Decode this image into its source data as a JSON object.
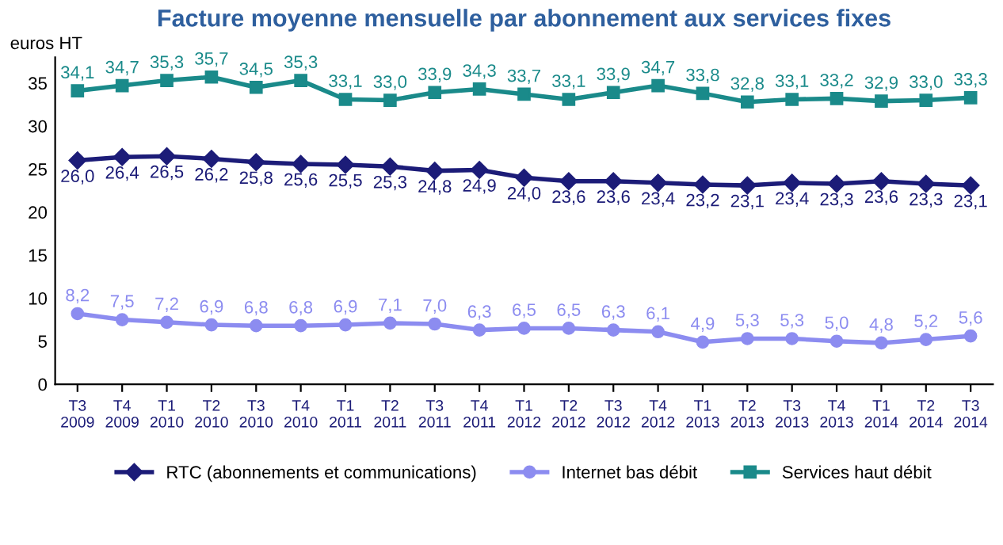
{
  "chart_data": {
    "type": "line",
    "title": "Facture moyenne mensuelle par abonnement aux services fixes",
    "ylabel": "euros HT",
    "categories": [
      "T3\n2009",
      "T4\n2009",
      "T1\n2010",
      "T2\n2010",
      "T3\n2010",
      "T4\n2010",
      "T1\n2011",
      "T2\n2011",
      "T3\n2011",
      "T4\n2011",
      "T1\n2012",
      "T2\n2012",
      "T3\n2012",
      "T4\n2012",
      "T1\n2013",
      "T2\n2013",
      "T3\n2013",
      "T4\n2013",
      "T1\n2014",
      "T2\n2014",
      "T3\n2014"
    ],
    "series": [
      {
        "name": "RTC (abonnements et communications)",
        "color": "#1c1c78",
        "marker": "diamond",
        "values": [
          26.0,
          26.4,
          26.5,
          26.2,
          25.8,
          25.6,
          25.5,
          25.3,
          24.8,
          24.9,
          24.0,
          23.6,
          23.6,
          23.4,
          23.2,
          23.1,
          23.4,
          23.3,
          23.6,
          23.3,
          23.1
        ],
        "value_labels": [
          "26,0",
          "26,4",
          "26,5",
          "26,2",
          "25,8",
          "25,6",
          "25,5",
          "25,3",
          "24,8",
          "24,9",
          "24,0",
          "23,6",
          "23,6",
          "23,4",
          "23,2",
          "23,1",
          "23,4",
          "23,3",
          "23,6",
          "23,3",
          "23,1"
        ]
      },
      {
        "name": "Internet bas débit",
        "color": "#8c8cf0",
        "marker": "circle",
        "values": [
          8.2,
          7.5,
          7.2,
          6.9,
          6.8,
          6.8,
          6.9,
          7.1,
          7.0,
          6.3,
          6.5,
          6.5,
          6.3,
          6.1,
          4.9,
          5.3,
          5.3,
          5.0,
          4.8,
          5.2,
          5.6
        ],
        "value_labels": [
          "8,2",
          "7,5",
          "7,2",
          "6,9",
          "6,8",
          "6,8",
          "6,9",
          "7,1",
          "7,0",
          "6,3",
          "6,5",
          "6,5",
          "6,3",
          "6,1",
          "4,9",
          "5,3",
          "5,3",
          "5,0",
          "4,8",
          "5,2",
          "5,6"
        ]
      },
      {
        "name": "Services haut débit",
        "color": "#1a8a8a",
        "marker": "square",
        "values": [
          34.1,
          34.7,
          35.3,
          35.7,
          34.5,
          35.3,
          33.1,
          33.0,
          33.9,
          34.3,
          33.7,
          33.1,
          33.9,
          34.7,
          33.8,
          32.8,
          33.1,
          33.2,
          32.9,
          33.0,
          33.3
        ],
        "value_labels": [
          "34,1",
          "34,7",
          "35,3",
          "35,7",
          "34,5",
          "35,3",
          "33,1",
          "33,0",
          "33,9",
          "34,3",
          "33,7",
          "33,1",
          "33,9",
          "34,7",
          "33,8",
          "32,8",
          "33,1",
          "33,2",
          "32,9",
          "33,0",
          "33,3"
        ]
      }
    ],
    "ylim": [
      0,
      38
    ],
    "yticks": [
      0,
      5,
      10,
      15,
      20,
      25,
      30,
      35
    ],
    "grid": false,
    "legend": "bottom",
    "line_style": "solid"
  }
}
